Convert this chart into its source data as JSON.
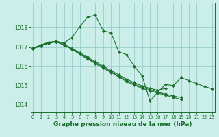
{
  "title": "Graphe pression niveau de la mer (hPa)",
  "bg_color": "#cceee8",
  "grid_color": "#99cccc",
  "line_color": "#1a6e2e",
  "marker": "D",
  "markersize": 2.2,
  "linewidth": 0.8,
  "title_fontsize": 6.5,
  "ylim": [
    1013.6,
    1019.3
  ],
  "xlim": [
    -0.3,
    23.3
  ],
  "yticks": [
    1014,
    1015,
    1016,
    1017,
    1018
  ],
  "xticks": [
    0,
    1,
    2,
    3,
    4,
    5,
    6,
    7,
    8,
    9,
    10,
    11,
    12,
    13,
    14,
    15,
    16,
    17,
    18,
    19,
    20,
    21,
    22,
    23
  ],
  "series": [
    {
      "x": [
        0,
        1,
        2,
        3,
        4,
        5,
        6,
        7,
        8,
        9,
        10,
        11,
        12,
        13,
        14,
        15,
        16,
        17,
        18,
        19,
        20,
        21,
        22,
        23
      ],
      "y": [
        1016.95,
        1017.1,
        1017.25,
        1017.3,
        1017.2,
        1017.5,
        1018.05,
        1018.55,
        1018.65,
        1017.85,
        1017.75,
        1016.75,
        1016.6,
        1016.0,
        1015.5,
        1014.2,
        1014.65,
        1015.05,
        1015.0,
        1015.4,
        1015.25,
        1015.1,
        1014.95,
        1014.82
      ]
    },
    {
      "x": [
        0,
        1,
        2,
        3,
        4,
        5,
        6,
        7,
        8,
        9,
        10,
        11,
        12,
        13,
        14,
        15,
        16,
        17,
        18,
        19,
        20,
        21,
        22,
        23
      ],
      "y": [
        1016.95,
        1017.08,
        1017.22,
        1017.28,
        1017.12,
        1016.9,
        1016.65,
        1016.42,
        1016.18,
        1015.95,
        1015.72,
        1015.48,
        1015.25,
        1015.08,
        1014.9,
        1014.78,
        1014.65,
        1014.55,
        1014.45,
        1014.38,
        null,
        null,
        null,
        null
      ]
    },
    {
      "x": [
        0,
        1,
        2,
        3,
        4,
        5,
        6,
        7,
        8,
        9,
        10,
        11,
        12,
        13,
        14,
        15,
        16,
        17,
        18,
        19,
        20,
        21,
        22,
        23
      ],
      "y": [
        1016.92,
        1017.05,
        1017.2,
        1017.26,
        1017.1,
        1016.88,
        1016.62,
        1016.38,
        1016.14,
        1015.9,
        1015.68,
        1015.44,
        1015.2,
        1015.02,
        1014.85,
        1014.72,
        1014.6,
        1014.5,
        1014.38,
        1014.28,
        null,
        null,
        null,
        null
      ]
    },
    {
      "x": [
        0,
        1,
        2,
        3,
        4,
        5,
        6,
        7,
        8,
        9,
        10,
        11,
        12,
        13,
        14,
        15,
        16,
        17
      ],
      "y": [
        1016.93,
        1017.07,
        1017.21,
        1017.27,
        1017.13,
        1016.93,
        1016.7,
        1016.47,
        1016.24,
        1016.01,
        1015.78,
        1015.55,
        1015.32,
        1015.15,
        1014.97,
        1014.85,
        1014.75,
        1014.85
      ]
    }
  ]
}
